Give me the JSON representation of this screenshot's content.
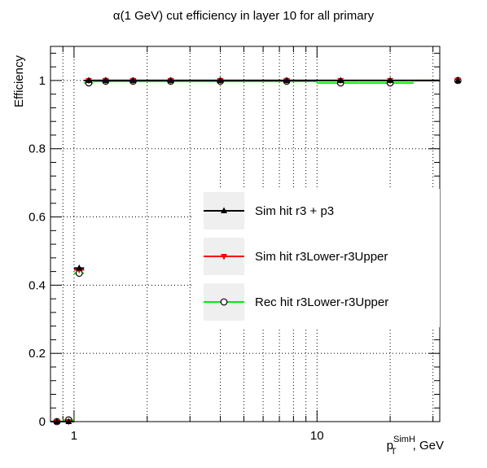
{
  "chart_data": {
    "type": "scatter",
    "title": "α(1 GeV) cut efficiency in layer 10 for all primary",
    "ylabel": "Efficiency",
    "xlabel": {
      "main": "p",
      "sub": "T",
      "sup": "SimH",
      "unit": ", GeV"
    },
    "xscale": "log",
    "xlim": [
      0.8,
      32
    ],
    "ylim": [
      0,
      1.1
    ],
    "yticks": [
      0,
      0.2,
      0.4,
      0.6,
      0.8,
      1
    ],
    "ytick_labels": [
      "0",
      "0.2",
      "0.4",
      "0.6",
      "0.8",
      "1"
    ],
    "xtick_labels": [
      {
        "value": 1,
        "label": "1"
      },
      {
        "value": 10,
        "label": "10"
      }
    ],
    "grid": true,
    "legend_position": "right",
    "series": [
      {
        "name": "Sim hit r3 + p3",
        "color": "#000000",
        "marker": "triangle-up",
        "points": [
          {
            "x": 0.85,
            "y": 0.0,
            "xerr": [
              0.8,
              0.9
            ]
          },
          {
            "x": 0.95,
            "y": 0.0,
            "xerr": [
              0.9,
              1.0
            ]
          },
          {
            "x": 1.05,
            "y": 0.45,
            "xerr": [
              1.0,
              1.1
            ]
          },
          {
            "x": 1.15,
            "y": 1.0,
            "xerr": [
              1.1,
              1.2
            ]
          },
          {
            "x": 1.35,
            "y": 1.0,
            "xerr": [
              1.2,
              1.5
            ]
          },
          {
            "x": 1.75,
            "y": 1.0,
            "xerr": [
              1.5,
              2.0
            ]
          },
          {
            "x": 2.5,
            "y": 1.0,
            "xerr": [
              2.0,
              3.0
            ]
          },
          {
            "x": 4.0,
            "y": 1.0,
            "xerr": [
              3.0,
              5.0
            ]
          },
          {
            "x": 7.5,
            "y": 1.0,
            "xerr": [
              5.0,
              10.0
            ]
          },
          {
            "x": 12.5,
            "y": 1.0,
            "xerr": [
              10.0,
              15.0
            ]
          },
          {
            "x": 20.0,
            "y": 1.0,
            "xerr": [
              15.0,
              25.0
            ]
          },
          {
            "x": 38.0,
            "y": 1.0,
            "xerr": [
              25.0,
              45.0
            ]
          }
        ]
      },
      {
        "name": "Sim hit r3Lower-r3Upper",
        "color": "#ff0000",
        "marker": "triangle-down",
        "points": [
          {
            "x": 0.85,
            "y": 0.0,
            "xerr": [
              0.8,
              0.9
            ]
          },
          {
            "x": 0.95,
            "y": 0.0,
            "xerr": [
              0.9,
              1.0
            ]
          },
          {
            "x": 1.05,
            "y": 0.445,
            "xerr": [
              1.0,
              1.1
            ]
          },
          {
            "x": 1.15,
            "y": 1.0,
            "xerr": [
              1.1,
              1.2
            ]
          },
          {
            "x": 1.35,
            "y": 1.0,
            "xerr": [
              1.2,
              1.5
            ]
          },
          {
            "x": 1.75,
            "y": 1.0,
            "xerr": [
              1.5,
              2.0
            ]
          },
          {
            "x": 2.5,
            "y": 1.0,
            "xerr": [
              2.0,
              3.0
            ]
          },
          {
            "x": 4.0,
            "y": 1.0,
            "xerr": [
              3.0,
              5.0
            ]
          },
          {
            "x": 7.5,
            "y": 1.0,
            "xerr": [
              5.0,
              10.0
            ]
          },
          {
            "x": 12.5,
            "y": 1.0,
            "xerr": [
              10.0,
              15.0
            ]
          },
          {
            "x": 20.0,
            "y": 1.0,
            "xerr": [
              15.0,
              25.0
            ]
          },
          {
            "x": 38.0,
            "y": 1.0,
            "xerr": [
              25.0,
              45.0
            ]
          }
        ]
      },
      {
        "name": "Rec hit r3Lower-r3Upper",
        "color": "#00ee00",
        "marker": "circle-open",
        "points": [
          {
            "x": 0.85,
            "y": 0.0,
            "xerr": [
              0.8,
              0.9
            ]
          },
          {
            "x": 0.95,
            "y": 0.005,
            "xerr": [
              0.9,
              1.0
            ]
          },
          {
            "x": 1.05,
            "y": 0.435,
            "xerr": [
              1.0,
              1.1
            ]
          },
          {
            "x": 1.15,
            "y": 0.993,
            "xerr": [
              1.1,
              1.2
            ]
          },
          {
            "x": 1.35,
            "y": 0.998,
            "xerr": [
              1.2,
              1.5
            ]
          },
          {
            "x": 1.75,
            "y": 0.998,
            "xerr": [
              1.5,
              2.0
            ]
          },
          {
            "x": 2.5,
            "y": 0.998,
            "xerr": [
              2.0,
              3.0
            ]
          },
          {
            "x": 4.0,
            "y": 0.998,
            "xerr": [
              3.0,
              5.0
            ]
          },
          {
            "x": 7.5,
            "y": 0.998,
            "xerr": [
              5.0,
              10.0
            ]
          },
          {
            "x": 12.5,
            "y": 0.993,
            "xerr": [
              10.0,
              15.0
            ]
          },
          {
            "x": 20.0,
            "y": 0.993,
            "xerr": [
              15.0,
              25.0
            ]
          },
          {
            "x": 38.0,
            "y": 1.0,
            "xerr": [
              25.0,
              45.0
            ]
          }
        ]
      }
    ]
  }
}
